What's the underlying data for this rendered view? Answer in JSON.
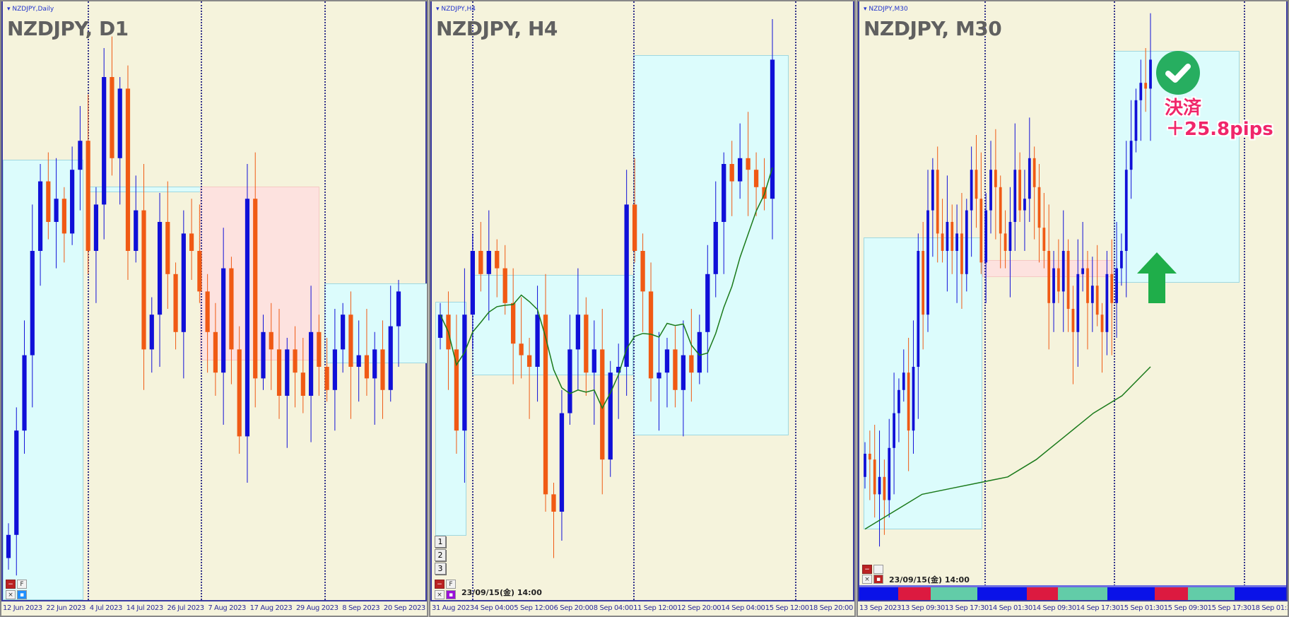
{
  "colors": {
    "bull": "#1010d8",
    "bear": "#f05a14",
    "ma": "#1a7a1a",
    "strip_blue": "#0a12e8",
    "strip_red": "#dc1a40",
    "strip_green": "#62cca8"
  },
  "panels": [
    {
      "small_title": "NZDJPY,Daily",
      "big_title": "NZDJPY, D1",
      "axis": [
        "12 Jun 2023",
        "22 Jun 2023",
        "4 Jul 2023",
        "14 Jul 2023",
        "26 Jul 2023",
        "7 Aug 2023",
        "17 Aug 2023",
        "29 Aug 2023",
        "8 Sep 2023",
        "20 Sep 2023"
      ],
      "closes": [
        11,
        29,
        42,
        60,
        72,
        65,
        69,
        63,
        74,
        79,
        60,
        68,
        90,
        76,
        88,
        60,
        67,
        43,
        49,
        65,
        56,
        46,
        63,
        60,
        53,
        46,
        39,
        57,
        43,
        28,
        69,
        38,
        46,
        43,
        35,
        43,
        39,
        35,
        46,
        40,
        36,
        43,
        49,
        40,
        42,
        38,
        43,
        36,
        47,
        53
      ]
    },
    {
      "small_title": "NZDJPY,H4",
      "big_title": "NZDJPY, H4",
      "axis": [
        "31 Aug 2023",
        "4 Sep 04:00",
        "5 Sep 12:00",
        "6 Sep 20:00",
        "8 Sep 04:00",
        "11 Sep 12:00",
        "12 Sep 20:00",
        "14 Sep 04:00",
        "15 Sep 12:00",
        "18 Sep 20:00"
      ],
      "buttons": [
        "1",
        "2",
        "3"
      ],
      "datetime": "23/09/15(金) 14:00",
      "closes": [
        49,
        43,
        29,
        49,
        60,
        56,
        60,
        57,
        51,
        44,
        42,
        40,
        49,
        18,
        15,
        32,
        43,
        49,
        39,
        43,
        24,
        39,
        40,
        68,
        60,
        53,
        38,
        39,
        43,
        36,
        42,
        39,
        46,
        56,
        65,
        75,
        72,
        76,
        74,
        71,
        69,
        93
      ]
    },
    {
      "small_title": "NZDJPY,M30",
      "big_title": "NZDJPY, M30",
      "axis": [
        "13 Sep 2023",
        "13 Sep 09:30",
        "13 Sep 17:30",
        "14 Sep 01:30",
        "14 Sep 09:30",
        "14 Sep 17:30",
        "15 Sep 01:30",
        "15 Sep 09:30",
        "15 Sep 17:30",
        "18 Sep 01:30"
      ],
      "datetime": "23/09/15(金) 14:00",
      "closes": [
        25,
        24,
        18,
        21,
        17,
        26,
        32,
        36,
        39,
        29,
        40,
        60,
        49,
        67,
        74,
        63,
        60,
        65,
        60,
        63,
        56,
        67,
        74,
        69,
        58,
        67,
        74,
        71,
        63,
        60,
        65,
        74,
        67,
        69,
        76,
        71,
        64,
        60,
        51,
        57,
        53,
        60,
        50,
        46,
        56,
        57,
        51,
        54,
        49,
        46,
        56,
        51,
        57,
        60,
        74,
        79,
        86,
        89,
        88,
        93
      ],
      "ma": [
        12,
        15,
        18,
        19,
        20,
        21,
        24,
        28,
        32,
        35,
        40
      ],
      "result_label": "決済",
      "result_pips": "＋25.8pips",
      "check_icon": "check-circle-icon",
      "arrow_icon": "arrow-up-icon",
      "strip": [
        "blue",
        "red",
        "green",
        "blue",
        "red",
        "green",
        "blue",
        "red",
        "green",
        "blue"
      ]
    }
  ]
}
